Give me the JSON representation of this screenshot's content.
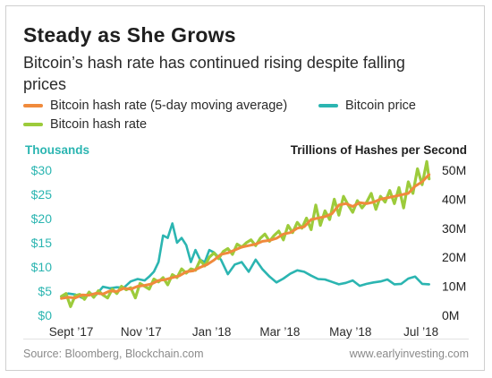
{
  "header": {
    "title": "Steady as She Grows",
    "subtitle": "Bitcoin’s hash rate has continued rising despite falling prices"
  },
  "legend": {
    "moving_average": "Bitcoin hash rate (5-day moving average)",
    "price": "Bitcoin price",
    "hash_rate": "Bitcoin hash rate"
  },
  "axes": {
    "left_title": "Thousands",
    "right_title": "Trillions of Hashes per Second"
  },
  "footer": {
    "source": "Source: Bloomberg, Blockchain.com",
    "site": "www.earlyinvesting.com"
  },
  "colors": {
    "moving_average": "#f08a3c",
    "price": "#2bb5b1",
    "hash_rate": "#9ccb3b",
    "left_axis_text": "#2bb5b1",
    "right_axis_text": "#1f1f1f"
  },
  "chart_data": {
    "type": "line",
    "x_tick_labels": [
      "Sept ’17",
      "Nov ’17",
      "Jan ’18",
      "Mar ’18",
      "May ’18",
      "Jul ’18"
    ],
    "x_tick_positions": [
      2.5,
      63,
      124,
      183,
      244,
      305
    ],
    "x_range": [
      -8,
      320
    ],
    "left_axis": {
      "label": "Thousands",
      "range": [
        0,
        30
      ],
      "ticks": [
        0,
        5,
        10,
        15,
        20,
        25,
        30
      ],
      "tick_labels": [
        "$0",
        "$5",
        "$10",
        "$15",
        "$20",
        "$25",
        "$30"
      ]
    },
    "right_axis": {
      "label": "Trillions of Hashes per Second",
      "range": [
        0,
        50
      ],
      "ticks": [
        0,
        10,
        20,
        30,
        40,
        50
      ],
      "tick_labels": [
        "0M",
        "10M",
        "20M",
        "30M",
        "40M",
        "50M"
      ]
    },
    "grid": false,
    "legend_position": "top",
    "series": [
      {
        "name": "Bitcoin price",
        "axis": "left",
        "x": [
          -6,
          0,
          6,
          12,
          18,
          24,
          30,
          36,
          42,
          48,
          54,
          60,
          66,
          70,
          74,
          78,
          82,
          86,
          90,
          94,
          98,
          102,
          106,
          110,
          114,
          118,
          122,
          126,
          132,
          138,
          144,
          150,
          156,
          162,
          168,
          174,
          180,
          186,
          192,
          198,
          204,
          210,
          216,
          222,
          228,
          234,
          240,
          246,
          252,
          258,
          264,
          270,
          276,
          282,
          288,
          294,
          300,
          306,
          312
        ],
        "y": [
          3.8,
          4.5,
          4.3,
          3.6,
          4.6,
          4.2,
          5.9,
          5.6,
          5.8,
          5.7,
          7.0,
          7.5,
          7.2,
          8.0,
          9.0,
          11.0,
          16.5,
          16.0,
          19.0,
          15.0,
          16.0,
          14.5,
          11.0,
          13.5,
          11.5,
          11.0,
          13.5,
          13.0,
          11.5,
          8.5,
          10.5,
          11.0,
          9.0,
          11.5,
          9.5,
          8.0,
          6.8,
          7.6,
          8.6,
          9.3,
          9.0,
          8.2,
          7.5,
          7.4,
          6.9,
          6.4,
          6.7,
          7.2,
          6.1,
          6.5,
          6.8,
          7.0,
          7.4,
          6.4,
          6.5,
          7.6,
          8.0,
          6.5,
          6.4
        ]
      },
      {
        "name": "Bitcoin hash rate",
        "axis": "right",
        "x": [
          -6,
          -2,
          2,
          6,
          10,
          14,
          18,
          22,
          26,
          30,
          34,
          38,
          42,
          46,
          50,
          54,
          58,
          62,
          66,
          70,
          74,
          78,
          82,
          86,
          90,
          94,
          98,
          102,
          106,
          110,
          114,
          118,
          122,
          126,
          130,
          134,
          138,
          142,
          146,
          150,
          154,
          158,
          162,
          166,
          170,
          174,
          178,
          182,
          186,
          190,
          194,
          198,
          202,
          206,
          210,
          214,
          218,
          222,
          226,
          230,
          234,
          238,
          242,
          246,
          250,
          254,
          258,
          262,
          266,
          270,
          274,
          278,
          282,
          286,
          290,
          294,
          298,
          302,
          306,
          310,
          312
        ],
        "y": [
          6.5,
          7.5,
          3.0,
          6.8,
          7.2,
          5.5,
          8.0,
          6.2,
          8.5,
          7.0,
          6.0,
          9.0,
          7.5,
          10.0,
          8.8,
          9.5,
          6.0,
          11.0,
          10.0,
          9.0,
          12.5,
          11.5,
          13.0,
          10.5,
          14.0,
          13.0,
          16.0,
          14.5,
          16.0,
          15.5,
          19.0,
          17.0,
          20.0,
          21.5,
          19.5,
          22.0,
          23.0,
          21.0,
          24.5,
          23.5,
          25.0,
          26.0,
          24.0,
          26.5,
          28.0,
          25.5,
          27.5,
          29.0,
          26.0,
          31.0,
          28.5,
          32.0,
          30.0,
          33.5,
          29.5,
          38.0,
          31.0,
          36.0,
          33.0,
          40.0,
          34.5,
          41.0,
          38.0,
          35.5,
          39.5,
          37.0,
          39.0,
          42.0,
          36.5,
          41.0,
          39.0,
          43.0,
          38.5,
          44.0,
          37.0,
          46.0,
          42.0,
          50.5,
          45.0,
          53.0,
          47.0
        ]
      },
      {
        "name": "Bitcoin hash rate (5-day moving average)",
        "axis": "right",
        "x": [
          -6,
          0,
          6,
          12,
          18,
          24,
          30,
          36,
          42,
          48,
          54,
          60,
          66,
          72,
          78,
          84,
          90,
          96,
          102,
          108,
          114,
          120,
          126,
          132,
          138,
          144,
          150,
          156,
          162,
          168,
          174,
          180,
          186,
          192,
          198,
          204,
          210,
          216,
          222,
          228,
          234,
          240,
          246,
          252,
          258,
          264,
          270,
          276,
          282,
          288,
          294,
          300,
          306,
          312
        ],
        "y": [
          5.8,
          6.2,
          6.0,
          7.0,
          6.9,
          7.6,
          7.3,
          8.4,
          8.2,
          9.3,
          9.0,
          10.0,
          10.3,
          10.8,
          12.0,
          12.3,
          13.0,
          13.6,
          15.0,
          15.3,
          16.5,
          17.5,
          19.0,
          21.0,
          21.5,
          22.5,
          23.5,
          24.0,
          24.5,
          25.5,
          25.8,
          26.5,
          28.0,
          28.5,
          30.0,
          30.5,
          33.0,
          33.5,
          34.0,
          35.0,
          38.0,
          38.5,
          37.5,
          38.8,
          38.5,
          39.0,
          40.0,
          40.5,
          41.0,
          41.5,
          42.0,
          44.5,
          46.0,
          48.5
        ]
      }
    ]
  }
}
